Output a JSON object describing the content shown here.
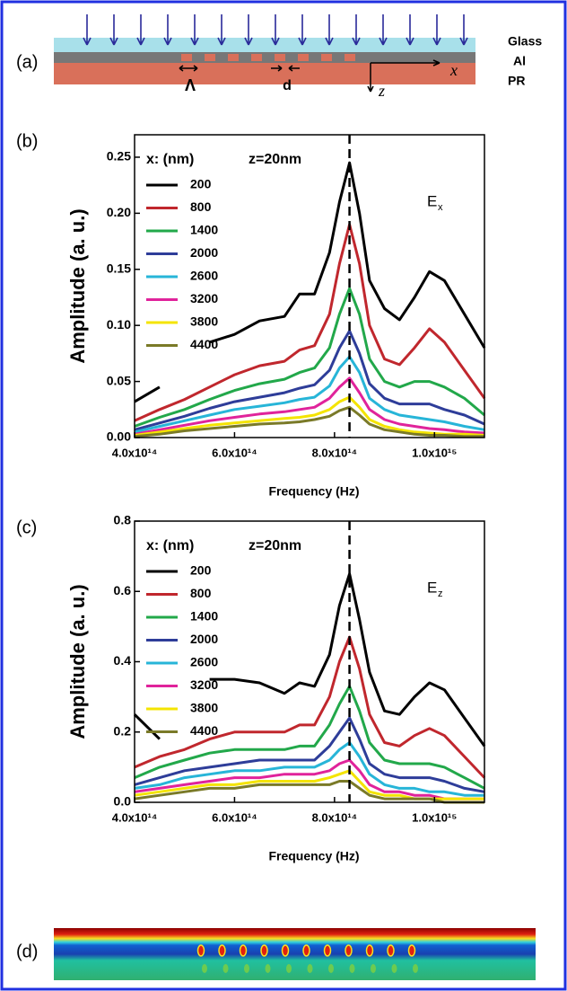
{
  "diagram_a": {
    "panel_label": "(a)",
    "layers": [
      "Glass",
      "Al",
      "PR"
    ],
    "period": "Λ",
    "gap": "d",
    "x_axis": "x",
    "z_axis": "z"
  },
  "panel_d": {
    "panel_label": "(d)"
  },
  "chart_data": [
    {
      "type": "line",
      "panel_label": "(b)",
      "y_label": "Amplitude (a. u.)",
      "x_label": "Frequency (Hz)",
      "legend_title": "x: (nm)",
      "annotation": "z=20nm",
      "field_label": {
        "main": "E",
        "sub": "x"
      },
      "xlim": [
        400000000000000.0,
        1100000000000000.0
      ],
      "ylim": [
        0,
        0.27
      ],
      "xticks": [
        {
          "value": 400000000000000.0,
          "label": "4.0x10¹⁴"
        },
        {
          "value": 600000000000000.0,
          "label": "6.0x10¹⁴"
        },
        {
          "value": 800000000000000.0,
          "label": "8.0x10¹⁴"
        },
        {
          "value": 1000000000000000.0,
          "label": "1.0x10¹⁵"
        }
      ],
      "yticks": [
        {
          "value": 0,
          "label": "0.00"
        },
        0.05,
        {
          "value": 0.1,
          "label": "0.10"
        },
        0.15,
        {
          "value": 0.2,
          "label": "0.20"
        },
        0.25
      ],
      "vline": 830000000000000.0,
      "x": [
        400000000000000.0,
        450000000000000.0,
        500000000000000.0,
        550000000000000.0,
        600000000000000.0,
        650000000000000.0,
        700000000000000.0,
        730000000000000.0,
        760000000000000.0,
        790000000000000.0,
        810000000000000.0,
        830000000000000.0,
        850000000000000.0,
        870000000000000.0,
        900000000000000.0,
        930000000000000.0,
        960000000000000.0,
        990000000000000.0,
        1020000000000000.0,
        1060000000000000.0,
        1100000000000000.0
      ],
      "series": [
        {
          "name": "200",
          "color": "#000000",
          "values": [
            0.032,
            0.045,
            null,
            0.085,
            0.092,
            0.104,
            0.108,
            0.128,
            0.128,
            0.165,
            0.21,
            0.245,
            0.2,
            0.14,
            0.115,
            0.105,
            0.125,
            0.148,
            0.14,
            0.11,
            0.08
          ]
        },
        {
          "name": "800",
          "color": "#c0272d",
          "values": [
            0.015,
            0.025,
            0.034,
            0.045,
            0.056,
            0.064,
            0.068,
            0.078,
            0.082,
            0.11,
            0.155,
            0.19,
            0.155,
            0.1,
            0.07,
            0.065,
            0.08,
            0.097,
            0.085,
            0.06,
            0.035
          ]
        },
        {
          "name": "1400",
          "color": "#22a84a",
          "values": [
            0.01,
            0.018,
            0.025,
            0.034,
            0.042,
            0.048,
            0.052,
            0.058,
            0.062,
            0.08,
            0.11,
            0.133,
            0.11,
            0.07,
            0.05,
            0.045,
            0.05,
            0.05,
            0.045,
            0.035,
            0.02
          ]
        },
        {
          "name": "2000",
          "color": "#2e3d99",
          "values": [
            0.007,
            0.013,
            0.019,
            0.026,
            0.032,
            0.036,
            0.04,
            0.044,
            0.047,
            0.06,
            0.08,
            0.095,
            0.075,
            0.048,
            0.035,
            0.03,
            0.03,
            0.03,
            0.025,
            0.02,
            0.012
          ]
        },
        {
          "name": "2600",
          "color": "#27b5d8",
          "values": [
            0.005,
            0.01,
            0.015,
            0.02,
            0.025,
            0.028,
            0.031,
            0.034,
            0.036,
            0.046,
            0.062,
            0.072,
            0.058,
            0.035,
            0.025,
            0.02,
            0.018,
            0.016,
            0.014,
            0.01,
            0.007
          ]
        },
        {
          "name": "3200",
          "color": "#e0239b",
          "values": [
            0.003,
            0.007,
            0.011,
            0.015,
            0.018,
            0.021,
            0.023,
            0.025,
            0.027,
            0.035,
            0.045,
            0.053,
            0.04,
            0.025,
            0.016,
            0.012,
            0.01,
            0.008,
            0.007,
            0.005,
            0.004
          ]
        },
        {
          "name": "3800",
          "color": "#f4e400",
          "values": [
            0.002,
            0.005,
            0.008,
            0.011,
            0.013,
            0.015,
            0.017,
            0.018,
            0.02,
            0.025,
            0.032,
            0.036,
            0.027,
            0.016,
            0.01,
            0.007,
            0.005,
            0.004,
            0.003,
            0.003,
            0.002
          ]
        },
        {
          "name": "4400",
          "color": "#7a7a28",
          "values": [
            0.001,
            0.003,
            0.006,
            0.008,
            0.01,
            0.012,
            0.013,
            0.014,
            0.016,
            0.019,
            0.024,
            0.027,
            0.02,
            0.012,
            0.007,
            0.005,
            0.003,
            0.002,
            0.002,
            0.001,
            0.001
          ]
        }
      ]
    },
    {
      "type": "line",
      "panel_label": "(c)",
      "y_label": "Amplitude (a. u.)",
      "x_label": "Frequency (Hz)",
      "legend_title": "x: (nm)",
      "annotation": "z=20nm",
      "field_label": {
        "main": "E",
        "sub": "z"
      },
      "xlim": [
        400000000000000.0,
        1100000000000000.0
      ],
      "ylim": [
        0,
        0.8
      ],
      "xticks": [
        {
          "value": 400000000000000.0,
          "label": "4.0x10¹⁴"
        },
        {
          "value": 600000000000000.0,
          "label": "6.0x10¹⁴"
        },
        {
          "value": 800000000000000.0,
          "label": "8.0x10¹⁴"
        },
        {
          "value": 1000000000000000.0,
          "label": "1.0x10¹⁵"
        }
      ],
      "yticks": [
        {
          "value": 0,
          "label": "0.0"
        },
        0.2,
        0.4,
        0.6,
        0.8
      ],
      "vline": 830000000000000.0,
      "x": [
        400000000000000.0,
        450000000000000.0,
        500000000000000.0,
        550000000000000.0,
        600000000000000.0,
        650000000000000.0,
        700000000000000.0,
        730000000000000.0,
        760000000000000.0,
        790000000000000.0,
        810000000000000.0,
        830000000000000.0,
        850000000000000.0,
        870000000000000.0,
        900000000000000.0,
        930000000000000.0,
        960000000000000.0,
        990000000000000.0,
        1020000000000000.0,
        1060000000000000.0,
        1100000000000000.0
      ],
      "series": [
        {
          "name": "200",
          "color": "#000000",
          "values": [
            0.25,
            0.18,
            null,
            0.35,
            0.35,
            0.34,
            0.31,
            0.34,
            0.33,
            0.42,
            0.56,
            0.65,
            0.52,
            0.37,
            0.26,
            0.25,
            0.3,
            0.34,
            0.32,
            0.24,
            0.16
          ]
        },
        {
          "name": "800",
          "color": "#c0272d",
          "values": [
            0.1,
            0.13,
            0.15,
            0.18,
            0.2,
            0.2,
            0.2,
            0.22,
            0.22,
            0.3,
            0.4,
            0.47,
            0.38,
            0.25,
            0.17,
            0.16,
            0.19,
            0.21,
            0.19,
            0.13,
            0.07
          ]
        },
        {
          "name": "1400",
          "color": "#22a84a",
          "values": [
            0.07,
            0.1,
            0.12,
            0.14,
            0.15,
            0.15,
            0.15,
            0.16,
            0.16,
            0.22,
            0.28,
            0.33,
            0.26,
            0.17,
            0.12,
            0.11,
            0.11,
            0.11,
            0.1,
            0.07,
            0.04
          ]
        },
        {
          "name": "2000",
          "color": "#2e3d99",
          "values": [
            0.05,
            0.07,
            0.09,
            0.1,
            0.11,
            0.12,
            0.12,
            0.12,
            0.12,
            0.16,
            0.2,
            0.24,
            0.18,
            0.11,
            0.08,
            0.07,
            0.07,
            0.07,
            0.06,
            0.04,
            0.03
          ]
        },
        {
          "name": "2600",
          "color": "#27b5d8",
          "values": [
            0.04,
            0.05,
            0.07,
            0.08,
            0.09,
            0.09,
            0.1,
            0.1,
            0.1,
            0.12,
            0.15,
            0.17,
            0.13,
            0.08,
            0.05,
            0.04,
            0.04,
            0.03,
            0.03,
            0.02,
            0.02
          ]
        },
        {
          "name": "3200",
          "color": "#e0239b",
          "values": [
            0.03,
            0.04,
            0.05,
            0.06,
            0.07,
            0.07,
            0.08,
            0.08,
            0.08,
            0.09,
            0.11,
            0.12,
            0.09,
            0.05,
            0.03,
            0.03,
            0.02,
            0.02,
            0.01,
            0.01,
            0.01
          ]
        },
        {
          "name": "3800",
          "color": "#f4e400",
          "values": [
            0.02,
            0.03,
            0.04,
            0.05,
            0.05,
            0.06,
            0.06,
            0.06,
            0.06,
            0.07,
            0.08,
            0.09,
            0.06,
            0.03,
            0.02,
            0.02,
            0.01,
            0.01,
            0.01,
            0.01,
            0.01
          ]
        },
        {
          "name": "4400",
          "color": "#7a7a28",
          "values": [
            0.01,
            0.02,
            0.03,
            0.04,
            0.04,
            0.05,
            0.05,
            0.05,
            0.05,
            0.05,
            0.06,
            0.06,
            0.04,
            0.02,
            0.01,
            0.01,
            0.01,
            0.01,
            0.0,
            0.0,
            0.0
          ]
        }
      ]
    }
  ]
}
